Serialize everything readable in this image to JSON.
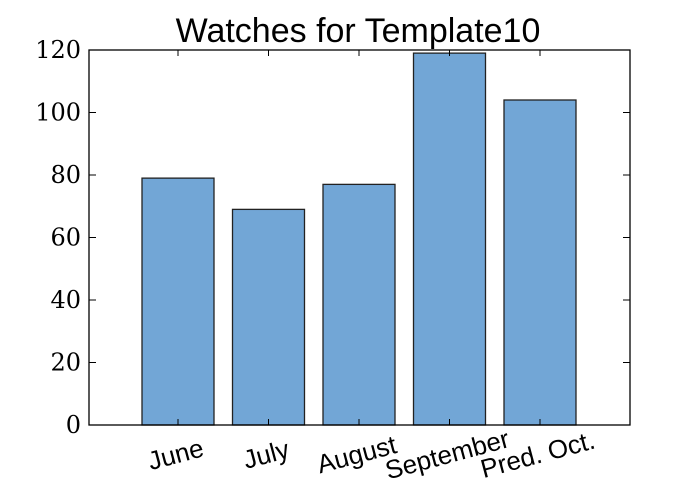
{
  "chart_data": {
    "type": "bar",
    "title": "Watches for Template10",
    "xlabel": "",
    "ylabel": "",
    "categories": [
      "June",
      "July",
      "August",
      "September",
      "Pred. Oct."
    ],
    "values": [
      79,
      69,
      77,
      119,
      104
    ],
    "ylim": [
      0,
      120
    ],
    "yticks": [
      0,
      20,
      40,
      60,
      80,
      100,
      120
    ],
    "grid": false,
    "legend": "none",
    "bar_color": "#72a6d6",
    "bar_edge_color": "#222222"
  }
}
